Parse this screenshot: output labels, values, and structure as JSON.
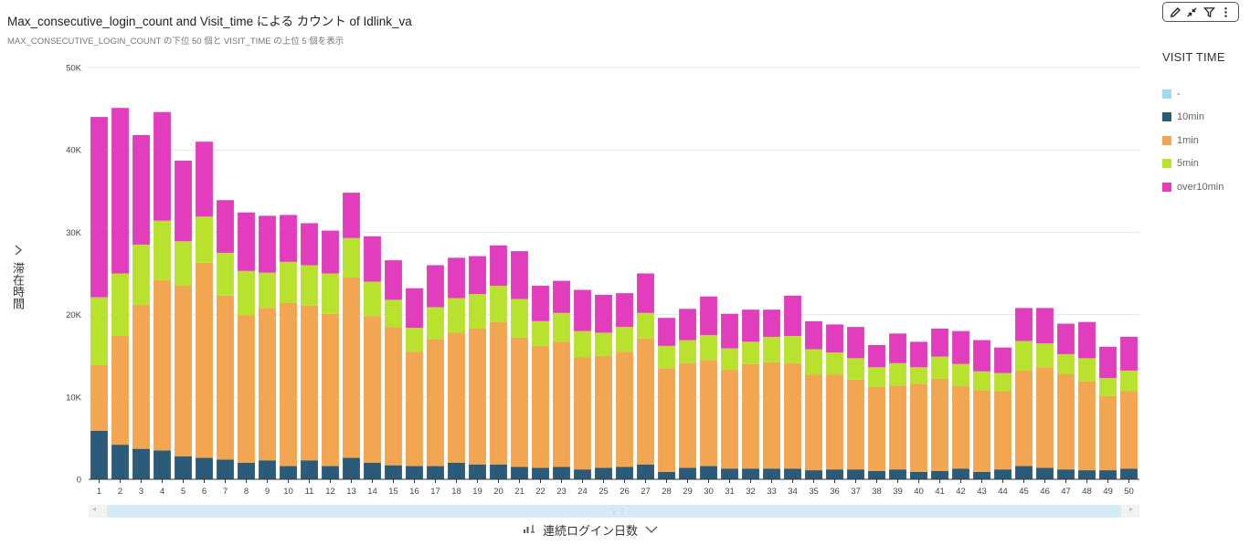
{
  "header": {
    "title": "Max_consecutive_login_count and Visit_time による カウント of Idlink_va",
    "subtitle": "MAX_CONSECUTIVE_LOGIN_COUNT の下位 50 個と VISIT_TIME の上位 5 個を表示"
  },
  "toolbar": {
    "icons": [
      "pencil-icon",
      "collapse-icon",
      "filter-icon",
      "more-icon"
    ]
  },
  "legend": {
    "title": "VISIT TIME",
    "items": [
      {
        "label": "-",
        "color": "#9fdcf0"
      },
      {
        "label": "10min",
        "color": "#2b5b78"
      },
      {
        "label": "1min",
        "color": "#f3a651"
      },
      {
        "label": "5min",
        "color": "#b8e22e"
      },
      {
        "label": "over10min",
        "color": "#e23dbd"
      }
    ]
  },
  "axes": {
    "y_label": "滞在時間",
    "x_label": "連続ログイン日数"
  },
  "chart_data": {
    "type": "bar",
    "stacked": true,
    "categories": [
      "1",
      "2",
      "3",
      "4",
      "5",
      "6",
      "7",
      "8",
      "9",
      "10",
      "11",
      "12",
      "13",
      "14",
      "15",
      "16",
      "17",
      "18",
      "19",
      "20",
      "21",
      "22",
      "23",
      "24",
      "25",
      "26",
      "27",
      "28",
      "29",
      "30",
      "31",
      "32",
      "33",
      "34",
      "35",
      "36",
      "37",
      "38",
      "39",
      "40",
      "41",
      "42",
      "43",
      "44",
      "45",
      "46",
      "47",
      "48",
      "49",
      "50"
    ],
    "y_ticks": [
      "0",
      "10K",
      "20K",
      "30K",
      "40K",
      "50K"
    ],
    "ylim": [
      0,
      50000
    ],
    "grid": true,
    "legend_position": "right",
    "series": [
      {
        "name": "-",
        "color": "#9fdcf0",
        "values": [
          0,
          0,
          0,
          0,
          0,
          0,
          0,
          0,
          0,
          0,
          0,
          0,
          0,
          0,
          0,
          0,
          0,
          0,
          0,
          0,
          0,
          0,
          0,
          0,
          0,
          0,
          0,
          0,
          0,
          0,
          0,
          0,
          0,
          0,
          0,
          0,
          0,
          0,
          0,
          0,
          0,
          0,
          0,
          0,
          0,
          0,
          0,
          0,
          0,
          0
        ]
      },
      {
        "name": "10min",
        "color": "#2b5b78",
        "values": [
          5900,
          4200,
          3700,
          3500,
          2800,
          2600,
          2400,
          2000,
          2300,
          1600,
          2300,
          1600,
          2600,
          2000,
          1700,
          1600,
          1600,
          2000,
          1800,
          1800,
          1500,
          1400,
          1500,
          1200,
          1400,
          1500,
          1800,
          900,
          1400,
          1600,
          1300,
          1300,
          1300,
          1300,
          1100,
          1200,
          1200,
          1000,
          1200,
          900,
          1000,
          1300,
          900,
          1200,
          1600,
          1400,
          1200,
          1100,
          1100,
          1300
        ]
      },
      {
        "name": "1min",
        "color": "#f3a651",
        "values": [
          8000,
          13200,
          17500,
          20700,
          20700,
          23700,
          19900,
          17900,
          18500,
          19800,
          18800,
          18500,
          21900,
          17800,
          16800,
          13900,
          15400,
          15800,
          16500,
          17300,
          15700,
          14800,
          15200,
          13600,
          13600,
          14000,
          15300,
          12600,
          12700,
          12900,
          12000,
          12700,
          12900,
          12800,
          11600,
          11500,
          10900,
          10200,
          10200,
          10700,
          11200,
          10000,
          9900,
          9500,
          11600,
          12200,
          11600,
          10800,
          9000,
          9400
        ]
      },
      {
        "name": "5min",
        "color": "#b8e22e",
        "values": [
          8200,
          7600,
          7300,
          7200,
          5400,
          5600,
          5200,
          5400,
          4300,
          5000,
          4900,
          4900,
          4800,
          4200,
          3300,
          2900,
          3900,
          4200,
          4200,
          4400,
          4700,
          3000,
          3500,
          3200,
          2800,
          3000,
          3100,
          2700,
          2800,
          3000,
          2600,
          2700,
          3100,
          3300,
          3100,
          2700,
          2600,
          2400,
          2700,
          2000,
          2700,
          2700,
          2300,
          2200,
          3600,
          2900,
          2400,
          2800,
          2200,
          2500
        ]
      },
      {
        "name": "over10min",
        "color": "#e23dbd",
        "values": [
          21900,
          20100,
          13300,
          13200,
          9800,
          9100,
          6400,
          7100,
          6900,
          5700,
          5100,
          5200,
          5500,
          5500,
          4800,
          4800,
          5100,
          4900,
          4600,
          4900,
          5800,
          4300,
          3900,
          5000,
          4600,
          4100,
          4800,
          3400,
          3800,
          4700,
          4200,
          3900,
          3300,
          4900,
          3400,
          3400,
          3800,
          2700,
          3600,
          3100,
          3400,
          4000,
          3800,
          3100,
          4000,
          4300,
          3700,
          4400,
          3800,
          4100
        ]
      }
    ]
  }
}
